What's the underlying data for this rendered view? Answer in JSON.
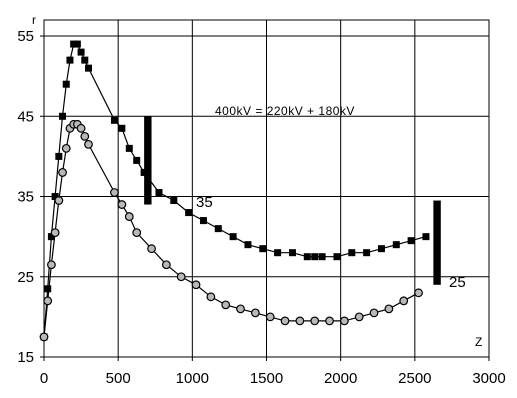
{
  "chart_data": {
    "type": "scatter",
    "title": "",
    "xlabel": "Z",
    "ylabel": "r",
    "xlim": [
      0,
      3000
    ],
    "ylim": [
      15,
      57
    ],
    "xticks": [
      0,
      500,
      1000,
      1500,
      2000,
      2500,
      3000
    ],
    "yticks": [
      15,
      25,
      35,
      45,
      55
    ],
    "grid": "horizontal and vertical",
    "annotation": "400kV = 220kV + 180kV",
    "series": [
      {
        "name": "35",
        "marker": "square",
        "color": "#000000",
        "x": [
          0,
          25,
          50,
          75,
          100,
          125,
          150,
          175,
          200,
          225,
          250,
          275,
          300,
          475,
          525,
          575,
          625,
          675,
          775,
          875,
          975,
          1075,
          1175,
          1275,
          1375,
          1475,
          1575,
          1675,
          1775,
          1825,
          1875,
          1975,
          2075,
          2175,
          2275,
          2375,
          2475,
          2575
        ],
        "y": [
          17.5,
          23.5,
          30,
          35,
          40,
          45,
          49,
          52,
          54,
          54,
          53,
          52,
          51,
          44.5,
          43.5,
          41,
          39.5,
          38,
          35.5,
          34.5,
          33,
          32,
          31,
          30,
          29,
          28.5,
          28,
          28,
          27.5,
          27.5,
          27.5,
          27.5,
          28,
          28,
          28.5,
          29,
          29.5,
          30
        ]
      },
      {
        "name": "25",
        "marker": "circle",
        "color": "#000000",
        "x": [
          0,
          25,
          50,
          75,
          100,
          125,
          150,
          175,
          200,
          225,
          250,
          275,
          300,
          475,
          525,
          575,
          625,
          725,
          825,
          925,
          1025,
          1125,
          1225,
          1325,
          1425,
          1525,
          1625,
          1725,
          1825,
          1925,
          2025,
          2125,
          2225,
          2325,
          2425,
          2525
        ],
        "y": [
          17.5,
          22,
          26.5,
          30.5,
          34.5,
          38,
          41,
          43.5,
          44,
          44,
          43.5,
          42.5,
          41.5,
          35.5,
          34,
          32.5,
          30.5,
          28.5,
          26.5,
          25,
          24,
          22.5,
          21.5,
          21,
          20.5,
          20,
          19.5,
          19.5,
          19.5,
          19.5,
          19.5,
          20,
          20.5,
          21,
          22,
          23
        ]
      }
    ],
    "bars": [
      {
        "x": 700,
        "y": [
          34,
          45
        ],
        "width": 50
      },
      {
        "x": 2650,
        "y": [
          24,
          34.5
        ],
        "width": 50
      }
    ]
  }
}
